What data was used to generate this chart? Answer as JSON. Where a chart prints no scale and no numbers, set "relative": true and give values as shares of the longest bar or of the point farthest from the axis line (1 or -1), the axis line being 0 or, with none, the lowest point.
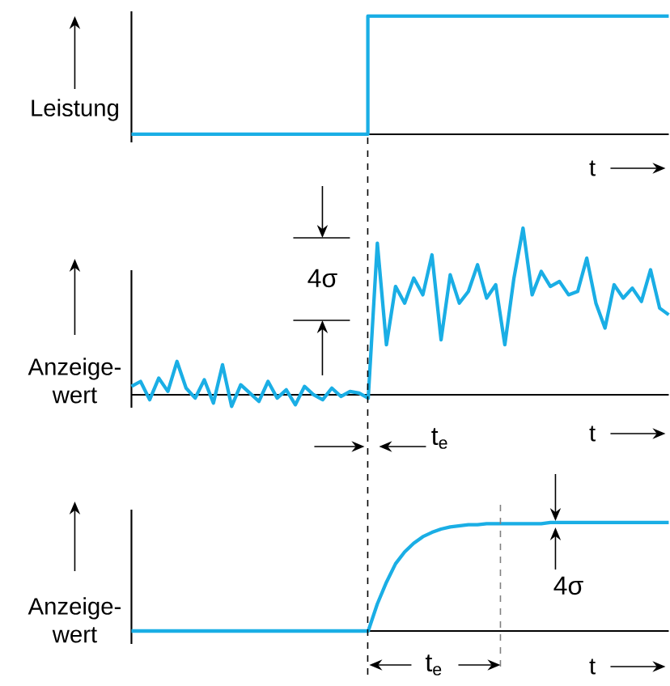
{
  "chart_data": [
    {
      "type": "step",
      "ylabel": "Leistung",
      "xlabel": "t",
      "relative": true,
      "color": "#1aaee5",
      "categories": [
        null,
        null,
        null,
        null,
        null,
        null,
        null,
        null,
        null,
        null,
        null,
        null,
        null,
        null,
        null,
        null,
        null,
        null,
        null,
        null,
        null,
        null,
        null,
        null,
        null,
        null
      ],
      "values": [
        0,
        0,
        0,
        0,
        0,
        0,
        0,
        0,
        0,
        0,
        0,
        1,
        1,
        1,
        1,
        1,
        1,
        1,
        1,
        1,
        1,
        1,
        1,
        1,
        1,
        1
      ]
    },
    {
      "type": "line",
      "ylabel": "Anzeige-wert",
      "xlabel": "t",
      "relative": true,
      "color": "#1aaee5",
      "annotations": [
        "4σ",
        "t$_{e}$"
      ],
      "categories": [
        null,
        null,
        null,
        null,
        null,
        null,
        null,
        null,
        null,
        null,
        null,
        null,
        null,
        null,
        null,
        null,
        null,
        null,
        null,
        null,
        null,
        null,
        null,
        null,
        null,
        null,
        null,
        null,
        null,
        null,
        null,
        null,
        null,
        null,
        null,
        null,
        null,
        null,
        null,
        null,
        null,
        null,
        null,
        null,
        null,
        null,
        null,
        null,
        null,
        null,
        null,
        null,
        null,
        null,
        null,
        null,
        null,
        null,
        null,
        null
      ],
      "values": [
        0.05,
        0.08,
        -0.03,
        0.1,
        0.02,
        0.2,
        0.04,
        -0.02,
        0.09,
        -0.05,
        0.18,
        -0.07,
        0.06,
        0.01,
        -0.04,
        0.08,
        -0.02,
        0.03,
        -0.06,
        0.05,
        0.0,
        -0.03,
        0.04,
        -0.01,
        0.02,
        0.01,
        -0.02,
        0.91,
        0.3,
        0.65,
        0.55,
        0.7,
        0.6,
        0.84,
        0.33,
        0.72,
        0.55,
        0.62,
        0.78,
        0.58,
        0.66,
        0.3,
        0.7,
        1.0,
        0.6,
        0.74,
        0.65,
        0.68,
        0.6,
        0.62,
        0.82,
        0.55,
        0.4,
        0.66,
        0.58,
        0.64,
        0.56,
        0.75,
        0.52,
        0.48
      ]
    },
    {
      "type": "line",
      "ylabel": "Anzeige-wert",
      "xlabel": "t",
      "relative": true,
      "color": "#1aaee5",
      "annotations": [
        "t$_{e}$",
        "4σ"
      ],
      "categories": [
        null,
        null,
        null,
        null,
        null,
        null,
        null,
        null,
        null,
        null,
        null,
        null,
        null,
        null,
        null,
        null,
        null,
        null,
        null,
        null,
        null,
        null,
        null,
        null,
        null,
        null,
        null,
        null,
        null,
        null,
        null,
        null,
        null,
        null,
        null,
        null,
        null,
        null,
        null,
        null,
        null,
        null,
        null,
        null,
        null,
        null,
        null,
        null,
        null,
        null,
        null,
        null,
        null,
        null,
        null,
        null,
        null,
        null,
        null,
        null
      ],
      "values": [
        0,
        0,
        0,
        0,
        0,
        0,
        0,
        0,
        0,
        0,
        0,
        0,
        0,
        0,
        0,
        0,
        0,
        0,
        0,
        0,
        0,
        0,
        0,
        0,
        0,
        0,
        0,
        0.25,
        0.45,
        0.62,
        0.73,
        0.81,
        0.87,
        0.91,
        0.94,
        0.96,
        0.97,
        0.98,
        0.98,
        0.99,
        0.99,
        0.99,
        0.99,
        0.99,
        0.99,
        0.99,
        1,
        1,
        1,
        1,
        1,
        1,
        1,
        1,
        1,
        1,
        1,
        1,
        1,
        1
      ]
    }
  ]
}
